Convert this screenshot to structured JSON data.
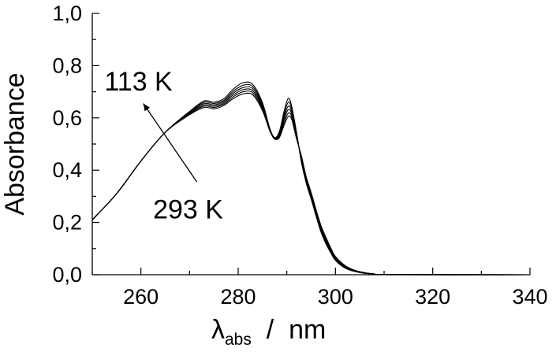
{
  "chart_data": {
    "type": "line",
    "xlabel_main": "λ",
    "xlabel_sub": "abs",
    "xlabel_rest": "  /  nm",
    "ylabel": "Absorbance",
    "xlim": [
      250,
      340
    ],
    "ylim": [
      0.0,
      1.0
    ],
    "x_ticks": [
      260,
      280,
      300,
      320,
      340
    ],
    "x_tick_labels": [
      "260",
      "280",
      "300",
      "320",
      "340"
    ],
    "y_ticks": [
      0.0,
      0.2,
      0.4,
      0.6,
      0.8,
      1.0
    ],
    "y_tick_labels": [
      "0,0",
      "0,2",
      "0,4",
      "0,6",
      "0,8",
      "1,0"
    ],
    "grid": false,
    "annotations": [
      {
        "text": "113 K",
        "x": 252.5,
        "y": 0.705
      },
      {
        "text": "293 K",
        "x": 262.5,
        "y": 0.215
      }
    ],
    "arrow": {
      "from": [
        271.5,
        0.355
      ],
      "to": [
        260.5,
        0.655
      ]
    },
    "series": [
      {
        "values": [
          [
            250,
            0.21
          ],
          [
            255,
            0.31
          ],
          [
            260,
            0.435
          ],
          [
            265,
            0.545
          ],
          [
            270,
            0.625
          ],
          [
            273,
            0.665
          ],
          [
            275,
            0.66
          ],
          [
            277,
            0.673
          ],
          [
            279,
            0.71
          ],
          [
            281,
            0.735
          ],
          [
            283,
            0.728
          ],
          [
            285,
            0.658
          ],
          [
            286.5,
            0.56
          ],
          [
            287.5,
            0.525
          ],
          [
            288.5,
            0.55
          ],
          [
            289.5,
            0.63
          ],
          [
            290.3,
            0.675
          ],
          [
            291,
            0.645
          ],
          [
            292,
            0.545
          ],
          [
            293,
            0.43
          ],
          [
            294,
            0.35
          ],
          [
            295,
            0.29
          ],
          [
            296,
            0.225
          ],
          [
            297,
            0.165
          ],
          [
            298,
            0.12
          ],
          [
            299,
            0.085
          ],
          [
            300,
            0.055
          ],
          [
            302,
            0.025
          ],
          [
            304,
            0.012
          ],
          [
            306,
            0.005
          ],
          [
            308,
            0.002
          ],
          [
            310,
            0.0
          ],
          [
            340,
            0.0
          ]
        ]
      },
      {
        "values": [
          [
            250,
            0.21
          ],
          [
            255,
            0.31
          ],
          [
            260,
            0.435
          ],
          [
            265,
            0.545
          ],
          [
            270,
            0.623
          ],
          [
            273,
            0.66
          ],
          [
            275,
            0.655
          ],
          [
            277,
            0.667
          ],
          [
            279,
            0.702
          ],
          [
            281,
            0.725
          ],
          [
            283,
            0.72
          ],
          [
            285,
            0.652
          ],
          [
            286.5,
            0.558
          ],
          [
            287.5,
            0.523
          ],
          [
            288.5,
            0.545
          ],
          [
            289.5,
            0.618
          ],
          [
            290.3,
            0.66
          ],
          [
            291,
            0.635
          ],
          [
            292,
            0.54
          ],
          [
            293,
            0.435
          ],
          [
            294,
            0.355
          ],
          [
            295,
            0.295
          ],
          [
            296,
            0.23
          ],
          [
            297,
            0.17
          ],
          [
            298,
            0.125
          ],
          [
            299,
            0.088
          ],
          [
            300,
            0.058
          ],
          [
            302,
            0.027
          ],
          [
            304,
            0.013
          ],
          [
            306,
            0.006
          ],
          [
            308,
            0.002
          ],
          [
            310,
            0.0
          ],
          [
            340,
            0.0
          ]
        ]
      },
      {
        "values": [
          [
            250,
            0.21
          ],
          [
            255,
            0.31
          ],
          [
            260,
            0.435
          ],
          [
            265,
            0.545
          ],
          [
            270,
            0.62
          ],
          [
            273,
            0.655
          ],
          [
            275,
            0.65
          ],
          [
            277,
            0.662
          ],
          [
            279,
            0.695
          ],
          [
            281,
            0.716
          ],
          [
            283,
            0.712
          ],
          [
            285,
            0.646
          ],
          [
            286.5,
            0.556
          ],
          [
            287.5,
            0.522
          ],
          [
            288.5,
            0.54
          ],
          [
            289.5,
            0.607
          ],
          [
            290.3,
            0.645
          ],
          [
            291,
            0.625
          ],
          [
            292,
            0.535
          ],
          [
            293,
            0.44
          ],
          [
            294,
            0.36
          ],
          [
            295,
            0.3
          ],
          [
            296,
            0.235
          ],
          [
            297,
            0.175
          ],
          [
            298,
            0.13
          ],
          [
            299,
            0.092
          ],
          [
            300,
            0.061
          ],
          [
            302,
            0.029
          ],
          [
            304,
            0.014
          ],
          [
            306,
            0.006
          ],
          [
            308,
            0.002
          ],
          [
            310,
            0.0
          ],
          [
            340,
            0.0
          ]
        ]
      },
      {
        "values": [
          [
            250,
            0.21
          ],
          [
            255,
            0.31
          ],
          [
            260,
            0.435
          ],
          [
            265,
            0.545
          ],
          [
            270,
            0.618
          ],
          [
            273,
            0.65
          ],
          [
            275,
            0.645
          ],
          [
            277,
            0.657
          ],
          [
            279,
            0.688
          ],
          [
            281,
            0.708
          ],
          [
            283,
            0.704
          ],
          [
            285,
            0.64
          ],
          [
            286.5,
            0.554
          ],
          [
            287.5,
            0.521
          ],
          [
            288.5,
            0.535
          ],
          [
            289.5,
            0.596
          ],
          [
            290.3,
            0.632
          ],
          [
            291,
            0.615
          ],
          [
            292,
            0.53
          ],
          [
            293,
            0.445
          ],
          [
            294,
            0.365
          ],
          [
            295,
            0.305
          ],
          [
            296,
            0.24
          ],
          [
            297,
            0.18
          ],
          [
            298,
            0.135
          ],
          [
            299,
            0.096
          ],
          [
            300,
            0.064
          ],
          [
            302,
            0.031
          ],
          [
            304,
            0.015
          ],
          [
            306,
            0.007
          ],
          [
            308,
            0.003
          ],
          [
            310,
            0.0
          ],
          [
            340,
            0.0
          ]
        ]
      },
      {
        "values": [
          [
            250,
            0.21
          ],
          [
            255,
            0.31
          ],
          [
            260,
            0.435
          ],
          [
            265,
            0.545
          ],
          [
            270,
            0.615
          ],
          [
            273,
            0.645
          ],
          [
            275,
            0.64
          ],
          [
            277,
            0.652
          ],
          [
            279,
            0.681
          ],
          [
            281,
            0.7
          ],
          [
            283,
            0.696
          ],
          [
            285,
            0.634
          ],
          [
            286.5,
            0.552
          ],
          [
            287.5,
            0.52
          ],
          [
            288.5,
            0.53
          ],
          [
            289.5,
            0.585
          ],
          [
            290.3,
            0.618
          ],
          [
            291,
            0.605
          ],
          [
            292,
            0.525
          ],
          [
            293,
            0.45
          ],
          [
            294,
            0.37
          ],
          [
            295,
            0.31
          ],
          [
            296,
            0.245
          ],
          [
            297,
            0.185
          ],
          [
            298,
            0.14
          ],
          [
            299,
            0.1
          ],
          [
            300,
            0.067
          ],
          [
            302,
            0.033
          ],
          [
            304,
            0.016
          ],
          [
            306,
            0.007
          ],
          [
            308,
            0.003
          ],
          [
            310,
            0.001
          ],
          [
            340,
            0.0
          ]
        ]
      },
      {
        "values": [
          [
            250,
            0.21
          ],
          [
            255,
            0.31
          ],
          [
            260,
            0.435
          ],
          [
            265,
            0.545
          ],
          [
            270,
            0.612
          ],
          [
            273,
            0.64
          ],
          [
            275,
            0.635
          ],
          [
            277,
            0.647
          ],
          [
            279,
            0.674
          ],
          [
            281,
            0.692
          ],
          [
            283,
            0.688
          ],
          [
            285,
            0.628
          ],
          [
            286.5,
            0.55
          ],
          [
            287.5,
            0.519
          ],
          [
            288.5,
            0.526
          ],
          [
            289.5,
            0.575
          ],
          [
            290.3,
            0.605
          ],
          [
            291,
            0.595
          ],
          [
            292,
            0.52
          ],
          [
            293,
            0.455
          ],
          [
            294,
            0.375
          ],
          [
            295,
            0.315
          ],
          [
            296,
            0.25
          ],
          [
            297,
            0.19
          ],
          [
            298,
            0.145
          ],
          [
            299,
            0.104
          ],
          [
            300,
            0.07
          ],
          [
            302,
            0.035
          ],
          [
            304,
            0.017
          ],
          [
            306,
            0.008
          ],
          [
            308,
            0.003
          ],
          [
            310,
            0.001
          ],
          [
            340,
            0.0
          ]
        ]
      }
    ]
  }
}
